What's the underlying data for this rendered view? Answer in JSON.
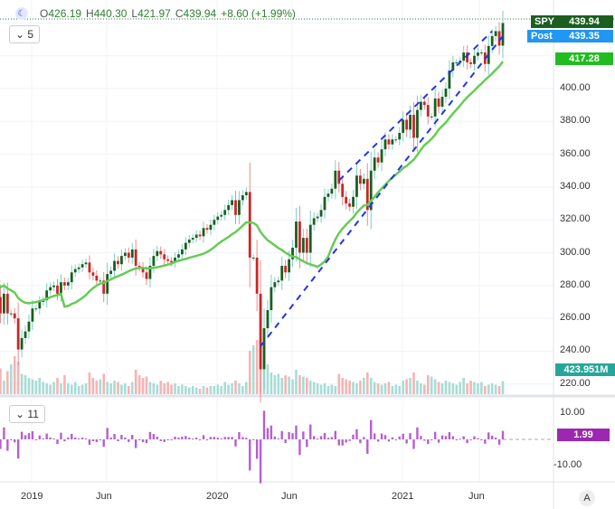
{
  "legend": {
    "open_label": "O",
    "open": "426.19",
    "high_label": "H",
    "high": "440.30",
    "low_label": "L",
    "low": "421.97",
    "close_label": "C",
    "close": "439.94",
    "change": "+8.60 (+1.99%)"
  },
  "price_pane": {
    "collapse_label": "5",
    "symbol": "SPY",
    "last_price": "439.94",
    "post_label": "Post",
    "post_price": "439.35",
    "ma_value": "417.28",
    "volume_value": "423.951M",
    "y_ticks": [
      "400.00",
      "380.00",
      "360.00",
      "340.00",
      "320.00",
      "300.00",
      "280.00",
      "260.00",
      "240.00",
      "220.00"
    ]
  },
  "roc_pane": {
    "collapse_label": "11",
    "value": "1.99",
    "y_ticks": [
      "10.00",
      "-10.00"
    ]
  },
  "x_ticks": [
    "2019",
    "Jun",
    "2020",
    "Jun",
    "2021",
    "Jun"
  ],
  "auto_scale_label": "A",
  "colors": {
    "up": "#1b5e20",
    "down": "#c62828",
    "ma": "#66cc55",
    "trend": "#2233ee",
    "roc": "#b55fd0",
    "vol_up": "#a8dcd6",
    "vol_down": "#f7b3b3"
  },
  "chart_data": {
    "type": "candlestick",
    "closes": [
      277,
      273,
      263,
      275,
      263,
      263,
      260,
      241,
      248,
      252,
      258,
      266,
      266,
      270,
      271,
      277,
      279,
      280,
      275,
      282,
      280,
      282,
      288,
      290,
      291,
      293,
      294,
      288,
      286,
      283,
      283,
      275,
      287,
      289,
      295,
      293,
      298,
      300,
      297,
      302,
      292,
      291,
      288,
      284,
      292,
      298,
      301,
      299,
      296,
      295,
      294,
      297,
      299,
      302,
      306,
      308,
      309,
      311,
      310,
      315,
      314,
      317,
      320,
      322,
      323,
      326,
      329,
      332,
      323,
      332,
      335,
      337,
      297,
      297,
      275,
      229,
      254,
      265,
      279,
      282,
      283,
      292,
      288,
      296,
      303,
      319,
      300,
      309,
      300,
      317,
      321,
      322,
      326,
      334,
      336,
      339,
      350,
      342,
      334,
      330,
      328,
      334,
      347,
      342,
      345,
      326,
      350,
      358,
      355,
      363,
      369,
      366,
      369,
      369,
      373,
      381,
      375,
      384,
      370,
      387,
      392,
      390,
      383,
      383,
      394,
      389,
      395,
      400,
      411,
      416,
      416,
      417,
      422,
      416,
      415,
      420,
      422,
      422,
      415,
      426,
      432,
      435,
      426.19,
      439.94
    ],
    "volumes": [
      80,
      60,
      95,
      50,
      85,
      110,
      140,
      120,
      75,
      70,
      60,
      55,
      50,
      60,
      45,
      40,
      35,
      45,
      60,
      40,
      70,
      40,
      35,
      45,
      30,
      35,
      40,
      80,
      60,
      50,
      55,
      75,
      45,
      40,
      50,
      45,
      35,
      40,
      30,
      45,
      90,
      70,
      60,
      65,
      45,
      40,
      35,
      50,
      40,
      45,
      35,
      40,
      30,
      35,
      30,
      25,
      30,
      25,
      20,
      30,
      25,
      30,
      30,
      35,
      30,
      45,
      35,
      40,
      50,
      40,
      30,
      45,
      160,
      180,
      200,
      190,
      130,
      110,
      80,
      70,
      75,
      60,
      70,
      65,
      55,
      90,
      70,
      65,
      60,
      50,
      45,
      40,
      35,
      40,
      30,
      35,
      30,
      75,
      60,
      55,
      50,
      45,
      40,
      50,
      60,
      80,
      60,
      45,
      40,
      35,
      40,
      45,
      30,
      35,
      30,
      50,
      55,
      60,
      80,
      50,
      40,
      35,
      70,
      65,
      55,
      45,
      40,
      50,
      45,
      40,
      35,
      45,
      60,
      40,
      50,
      45,
      40,
      45,
      30,
      35,
      40,
      35,
      30,
      48
    ],
    "ma_period": 20,
    "trendlines": [
      {
        "bars_back": [
          68,
          0
        ],
        "prices": [
          243,
          432
        ]
      },
      {
        "bars_back": [
          46,
          3
        ],
        "prices": [
          344,
          435
        ]
      }
    ],
    "price_range": [
      212,
      448
    ],
    "roc_range": [
      -17,
      17
    ]
  }
}
